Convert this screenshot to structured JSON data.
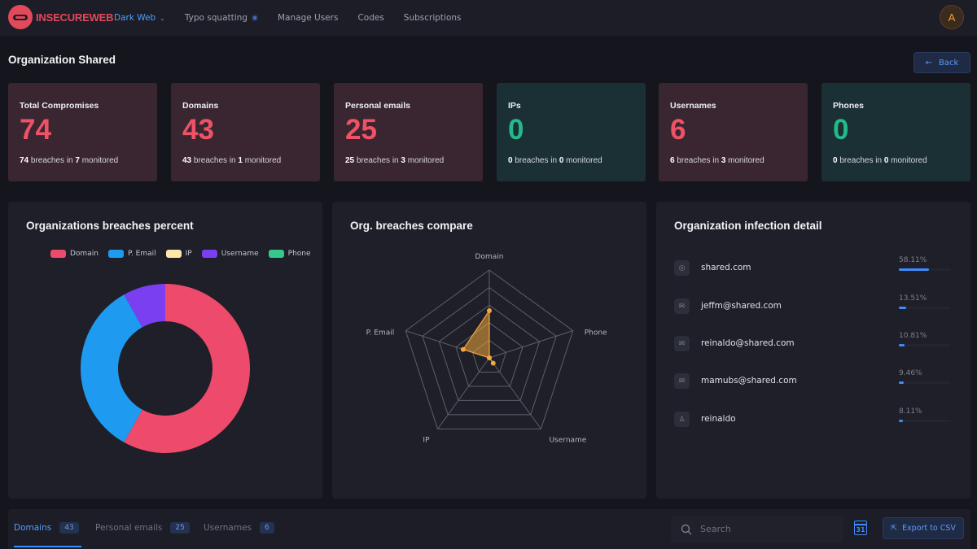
{
  "app": {
    "brand": "INSECUREWEB",
    "avatar_letter": "A"
  },
  "nav": {
    "dark_web": "Dark Web",
    "typo_squatting": "Typo squatting",
    "manage_users": "Manage Users",
    "codes": "Codes",
    "subscriptions": "Subscriptions"
  },
  "page": {
    "title": "Organization Shared",
    "back_label": "Back"
  },
  "stats": [
    {
      "label": "Total Compromises",
      "value": "74",
      "breaches": "74",
      "monitored": "7",
      "color": "#ef5266"
    },
    {
      "label": "Domains",
      "value": "43",
      "breaches": "43",
      "monitored": "1",
      "color": "#ef5266"
    },
    {
      "label": "Personal emails",
      "value": "25",
      "breaches": "25",
      "monitored": "3",
      "color": "#ef5266"
    },
    {
      "label": "IPs",
      "value": "0",
      "breaches": "0",
      "monitored": "0",
      "color": "#23b98a"
    },
    {
      "label": "Usernames",
      "value": "6",
      "breaches": "6",
      "monitored": "3",
      "color": "#ef5266"
    },
    {
      "label": "Phones",
      "value": "0",
      "breaches": "0",
      "monitored": "0",
      "color": "#23b98a"
    }
  ],
  "stat_text": {
    "breaches_in": " breaches in ",
    "monitored": " monitored"
  },
  "panels": {
    "breaches_percent_title": "Organizations breaches percent",
    "compare_title": "Org. breaches compare",
    "infection_title": "Organization infection detail"
  },
  "chart_data": [
    {
      "type": "pie",
      "title": "Organizations breaches percent",
      "categories": [
        "Domain",
        "P. Email",
        "IP",
        "Username",
        "Phone"
      ],
      "values": [
        43,
        25,
        0,
        6,
        0
      ],
      "colors": [
        "#ee4a6b",
        "#1e9bf0",
        "#fde7a8",
        "#7b3ff2",
        "#35c88a"
      ],
      "donut": true,
      "legend": "top"
    },
    {
      "type": "radar",
      "title": "Org. breaches compare",
      "categories": [
        "Domain",
        "Phone",
        "Username",
        "IP",
        "P. Email"
      ],
      "values": [
        43,
        0,
        6,
        0,
        25
      ],
      "rmax": 80,
      "rings": 5,
      "color": "#f3a63b"
    }
  ],
  "infection_detail": [
    {
      "icon": "globe-icon",
      "glyph": "◎",
      "name": "shared.com",
      "percent": "58.11%",
      "fraction": 0.5811
    },
    {
      "icon": "mail-icon",
      "glyph": "✉",
      "name": "jeffm@shared.com",
      "percent": "13.51%",
      "fraction": 0.1351
    },
    {
      "icon": "mail-icon",
      "glyph": "✉",
      "name": "reinaldo@shared.com",
      "percent": "10.81%",
      "fraction": 0.1081
    },
    {
      "icon": "mail-icon",
      "glyph": "✉",
      "name": "mamubs@shared.com",
      "percent": "9.46%",
      "fraction": 0.0946
    },
    {
      "icon": "user-icon",
      "glyph": "♙",
      "name": "reinaldo",
      "percent": "8.11%",
      "fraction": 0.0811
    }
  ],
  "tabs": [
    {
      "label": "Domains",
      "count": "43"
    },
    {
      "label": "Personal emails",
      "count": "25"
    },
    {
      "label": "Usernames",
      "count": "6"
    }
  ],
  "toolbar": {
    "search_placeholder": "Search",
    "calendar_day": "31",
    "export_label": "Export to CSV"
  }
}
